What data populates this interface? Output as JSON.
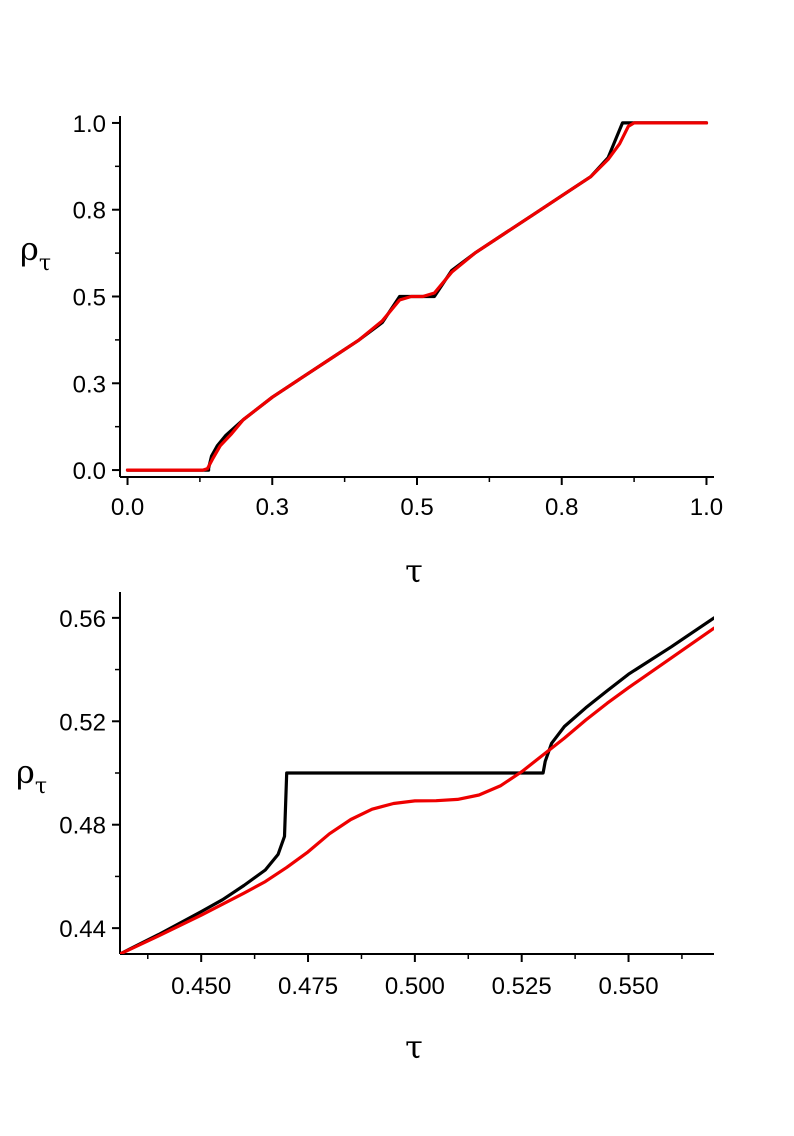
{
  "chart_data": [
    {
      "type": "line",
      "xlabel": "τ",
      "ylabel": {
        "main": "ρ",
        "sub": "τ"
      },
      "xlim": [
        -0.013,
        1.013
      ],
      "ylim": [
        -0.02,
        1.02
      ],
      "x_ticks": [
        0.0,
        0.25,
        0.5,
        0.75,
        1.0
      ],
      "x_tick_labels": [
        "0.0",
        "0.3",
        "0.5",
        "0.8",
        "1.0"
      ],
      "y_ticks": [
        0.0,
        0.25,
        0.5,
        0.75,
        1.0
      ],
      "y_tick_labels": [
        "0.0",
        "0.3",
        "0.5",
        "0.8",
        "1.0"
      ],
      "minor_ticks": true,
      "grid": false,
      "legend": "none",
      "series": [
        {
          "color": "#000000",
          "points": [
            [
              0.0,
              0.0
            ],
            [
              0.14,
              0.0
            ],
            [
              0.14,
              0.005
            ],
            [
              0.145,
              0.04
            ],
            [
              0.155,
              0.07
            ],
            [
              0.17,
              0.1
            ],
            [
              0.2,
              0.145
            ],
            [
              0.25,
              0.21
            ],
            [
              0.3,
              0.265
            ],
            [
              0.35,
              0.32
            ],
            [
              0.4,
              0.375
            ],
            [
              0.44,
              0.425
            ],
            [
              0.47,
              0.5
            ],
            [
              0.53,
              0.5
            ],
            [
              0.56,
              0.575
            ],
            [
              0.6,
              0.625
            ],
            [
              0.65,
              0.68
            ],
            [
              0.7,
              0.735
            ],
            [
              0.75,
              0.79
            ],
            [
              0.8,
              0.845
            ],
            [
              0.83,
              0.9
            ],
            [
              0.845,
              0.96
            ],
            [
              0.855,
              1.0
            ],
            [
              1.0,
              1.0
            ]
          ]
        },
        {
          "color": "#ee0000",
          "points": [
            [
              0.0,
              0.0
            ],
            [
              0.13,
              0.0
            ],
            [
              0.138,
              0.004
            ],
            [
              0.148,
              0.035
            ],
            [
              0.16,
              0.07
            ],
            [
              0.18,
              0.105
            ],
            [
              0.2,
              0.145
            ],
            [
              0.25,
              0.21
            ],
            [
              0.3,
              0.265
            ],
            [
              0.35,
              0.32
            ],
            [
              0.4,
              0.375
            ],
            [
              0.44,
              0.43
            ],
            [
              0.47,
              0.49
            ],
            [
              0.49,
              0.5
            ],
            [
              0.51,
              0.5
            ],
            [
              0.53,
              0.51
            ],
            [
              0.56,
              0.57
            ],
            [
              0.6,
              0.625
            ],
            [
              0.65,
              0.68
            ],
            [
              0.7,
              0.735
            ],
            [
              0.75,
              0.79
            ],
            [
              0.8,
              0.845
            ],
            [
              0.83,
              0.895
            ],
            [
              0.85,
              0.94
            ],
            [
              0.865,
              0.99
            ],
            [
              0.875,
              1.0
            ],
            [
              1.0,
              1.0
            ]
          ]
        }
      ]
    },
    {
      "type": "line",
      "xlabel": "τ",
      "ylabel": {
        "main": "ρ",
        "sub": "τ"
      },
      "xlim": [
        0.431,
        0.57
      ],
      "ylim": [
        0.43,
        0.57
      ],
      "x_ticks": [
        0.45,
        0.475,
        0.5,
        0.525,
        0.55
      ],
      "x_tick_labels": [
        "0.450",
        "0.475",
        "0.500",
        "0.525",
        "0.550"
      ],
      "y_ticks": [
        0.44,
        0.48,
        0.52,
        0.56
      ],
      "y_tick_labels": [
        "0.44",
        "0.48",
        "0.52",
        "0.56"
      ],
      "minor_ticks": true,
      "grid": false,
      "legend": "none",
      "series": [
        {
          "color": "#000000",
          "points": [
            [
              0.431,
              0.43
            ],
            [
              0.44,
              0.4375
            ],
            [
              0.45,
              0.4464
            ],
            [
              0.455,
              0.451
            ],
            [
              0.46,
              0.4565
            ],
            [
              0.465,
              0.4625
            ],
            [
              0.468,
              0.4685
            ],
            [
              0.4695,
              0.4755
            ],
            [
              0.47,
              0.5
            ],
            [
              0.53,
              0.5
            ],
            [
              0.5305,
              0.5045
            ],
            [
              0.532,
              0.5115
            ],
            [
              0.535,
              0.518
            ],
            [
              0.54,
              0.5252
            ],
            [
              0.545,
              0.5318
            ],
            [
              0.55,
              0.5382
            ],
            [
              0.56,
              0.5488
            ],
            [
              0.57,
              0.56
            ]
          ]
        },
        {
          "color": "#ee0000",
          "points": [
            [
              0.431,
              0.43
            ],
            [
              0.44,
              0.437
            ],
            [
              0.45,
              0.445
            ],
            [
              0.46,
              0.4535
            ],
            [
              0.465,
              0.458
            ],
            [
              0.47,
              0.4635
            ],
            [
              0.475,
              0.4695
            ],
            [
              0.48,
              0.4765
            ],
            [
              0.485,
              0.482
            ],
            [
              0.49,
              0.486
            ],
            [
              0.495,
              0.4882
            ],
            [
              0.5,
              0.4892
            ],
            [
              0.505,
              0.4893
            ],
            [
              0.51,
              0.4898
            ],
            [
              0.515,
              0.4915
            ],
            [
              0.52,
              0.495
            ],
            [
              0.525,
              0.5005
            ],
            [
              0.53,
              0.507
            ],
            [
              0.535,
              0.5135
            ],
            [
              0.54,
              0.5205
            ],
            [
              0.545,
              0.527
            ],
            [
              0.55,
              0.533
            ],
            [
              0.56,
              0.5445
            ],
            [
              0.57,
              0.556
            ]
          ]
        }
      ]
    }
  ]
}
